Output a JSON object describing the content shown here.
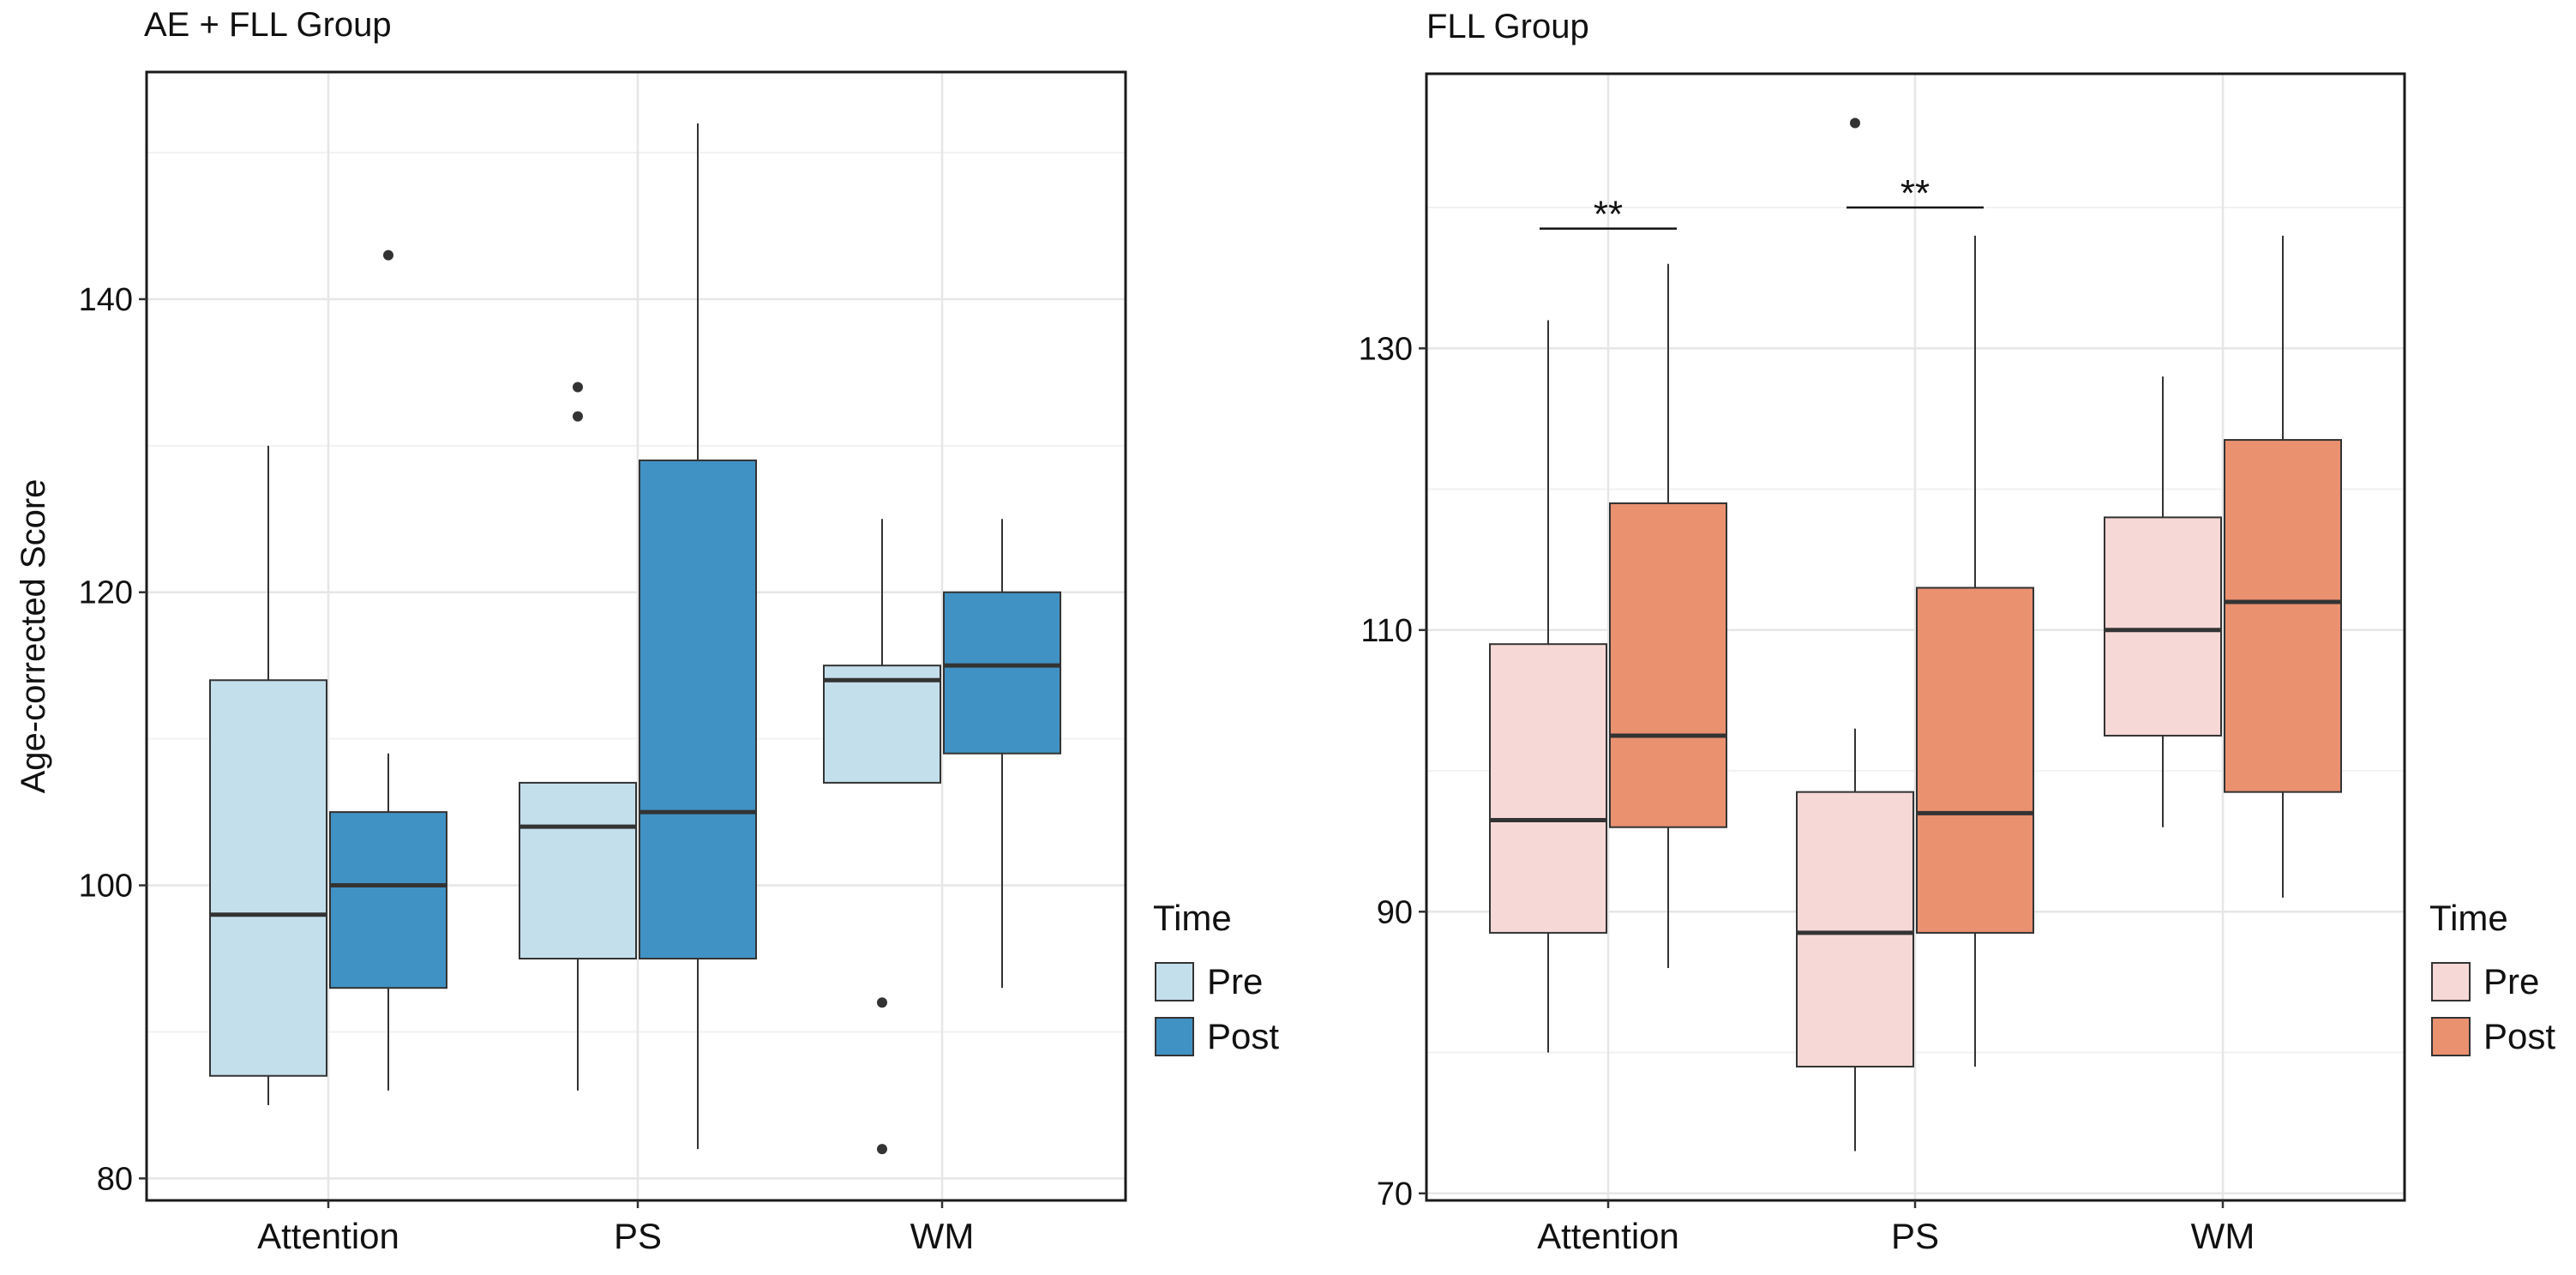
{
  "chart_data": [
    {
      "type": "box",
      "title": "AE + FLL Group",
      "xlabel": "",
      "ylabel": "Age-corrected Score",
      "ylim": [
        78.5,
        155.5
      ],
      "yticks": [
        80,
        100,
        120,
        140
      ],
      "grid": true,
      "categories": [
        "Attention",
        "PS",
        "WM"
      ],
      "legend": {
        "title": "Time",
        "position": "right",
        "entries": [
          "Pre",
          "Post"
        ]
      },
      "series": [
        {
          "name": "Pre",
          "color": "#c4dfec",
          "boxes": [
            {
              "category": "Attention",
              "whisker_low": 85,
              "q1": 87,
              "median": 98,
              "q3": 114,
              "whisker_high": 130,
              "outliers": []
            },
            {
              "category": "PS",
              "whisker_low": 86,
              "q1": 95,
              "median": 104,
              "q3": 107,
              "whisker_high": 107,
              "outliers": [
                132,
                134
              ]
            },
            {
              "category": "WM",
              "whisker_low": 107,
              "q1": 107,
              "median": 114,
              "q3": 115,
              "whisker_high": 125,
              "outliers": [
                82,
                92
              ]
            }
          ]
        },
        {
          "name": "Post",
          "color": "#4192c4",
          "boxes": [
            {
              "category": "Attention",
              "whisker_low": 86,
              "q1": 93,
              "median": 100,
              "q3": 105,
              "whisker_high": 109,
              "outliers": [
                143
              ]
            },
            {
              "category": "PS",
              "whisker_low": 82,
              "q1": 95,
              "median": 105,
              "q3": 129,
              "whisker_high": 152,
              "outliers": []
            },
            {
              "category": "WM",
              "whisker_low": 93,
              "q1": 109,
              "median": 115,
              "q3": 120,
              "whisker_high": 125,
              "outliers": []
            }
          ]
        }
      ],
      "annotations": []
    },
    {
      "type": "box",
      "title": "FLL Group",
      "xlabel": "",
      "ylabel": "",
      "ylim": [
        69.5,
        149.5
      ],
      "yticks": [
        70,
        90,
        110,
        130
      ],
      "grid": true,
      "categories": [
        "Attention",
        "PS",
        "WM"
      ],
      "legend": {
        "title": "Time",
        "position": "right",
        "entries": [
          "Pre",
          "Post"
        ]
      },
      "series": [
        {
          "name": "Pre",
          "color": "#f6d8d6",
          "boxes": [
            {
              "category": "Attention",
              "whisker_low": 80,
              "q1": 88.5,
              "median": 96.5,
              "q3": 109,
              "whisker_high": 132,
              "outliers": []
            },
            {
              "category": "PS",
              "whisker_low": 73,
              "q1": 79,
              "median": 88.5,
              "q3": 98.5,
              "whisker_high": 103,
              "outliers": [
                146
              ]
            },
            {
              "category": "WM",
              "whisker_low": 96,
              "q1": 102.5,
              "median": 110,
              "q3": 118,
              "whisker_high": 128,
              "outliers": []
            }
          ]
        },
        {
          "name": "Post",
          "color": "#ea9170",
          "boxes": [
            {
              "category": "Attention",
              "whisker_low": 86,
              "q1": 96,
              "median": 102.5,
              "q3": 119,
              "whisker_high": 136,
              "outliers": []
            },
            {
              "category": "PS",
              "whisker_low": 79,
              "q1": 88.5,
              "median": 97,
              "q3": 113,
              "whisker_high": 138,
              "outliers": []
            },
            {
              "category": "WM",
              "whisker_low": 91,
              "q1": 98.5,
              "median": 112,
              "q3": 123.5,
              "whisker_high": 138,
              "outliers": []
            }
          ]
        }
      ],
      "annotations": [
        {
          "category": "Attention",
          "text": "**",
          "y": 138.5
        },
        {
          "category": "PS",
          "text": "**",
          "y": 140
        }
      ]
    }
  ]
}
